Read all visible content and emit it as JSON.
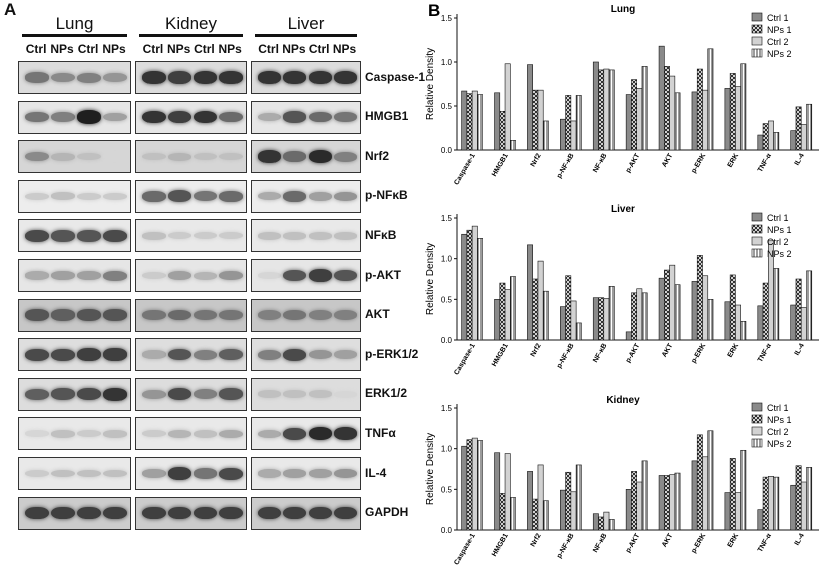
{
  "panel_a": {
    "letter": "A",
    "tissues": [
      {
        "name": "Lung",
        "lanes": [
          "Ctrl",
          "NPs",
          "Ctrl",
          "NPs"
        ]
      },
      {
        "name": "Kidney",
        "lanes": [
          "Ctrl",
          "NPs",
          "Ctrl",
          "NPs"
        ]
      },
      {
        "name": "Liver",
        "lanes": [
          "Ctrl",
          "NPs",
          "Ctrl",
          "NPs"
        ]
      }
    ],
    "rows": [
      {
        "label": "Caspase-1",
        "bg": "#dcdcdc",
        "intensity": [
          [
            0.55,
            0.45,
            0.5,
            0.4
          ],
          [
            0.85,
            0.8,
            0.85,
            0.85
          ],
          [
            0.85,
            0.85,
            0.85,
            0.85
          ]
        ]
      },
      {
        "label": "HMGB1",
        "bg": "#e6e6e6",
        "intensity": [
          [
            0.55,
            0.5,
            0.95,
            0.35
          ],
          [
            0.85,
            0.8,
            0.85,
            0.6
          ],
          [
            0.3,
            0.7,
            0.6,
            0.55
          ]
        ]
      },
      {
        "label": "Nrf2",
        "bg": "#d6d6d6",
        "intensity": [
          [
            0.45,
            0.25,
            0.2,
            0.1
          ],
          [
            0.2,
            0.25,
            0.2,
            0.2
          ],
          [
            0.85,
            0.6,
            0.9,
            0.5
          ]
        ]
      },
      {
        "label": "p-NFκB",
        "bg": "#ededed",
        "intensity": [
          [
            0.15,
            0.2,
            0.15,
            0.15
          ],
          [
            0.6,
            0.7,
            0.55,
            0.6
          ],
          [
            0.3,
            0.6,
            0.35,
            0.4
          ]
        ]
      },
      {
        "label": "NFκB",
        "bg": "#e9e9e9",
        "intensity": [
          [
            0.75,
            0.7,
            0.7,
            0.75
          ],
          [
            0.2,
            0.15,
            0.15,
            0.15
          ],
          [
            0.2,
            0.2,
            0.2,
            0.2
          ]
        ]
      },
      {
        "label": "p-AKT",
        "bg": "#e6e6e6",
        "intensity": [
          [
            0.3,
            0.35,
            0.35,
            0.5
          ],
          [
            0.15,
            0.35,
            0.25,
            0.4
          ],
          [
            0.1,
            0.7,
            0.8,
            0.7
          ]
        ]
      },
      {
        "label": "AKT",
        "bg": "#c7c7c7",
        "intensity": [
          [
            0.7,
            0.65,
            0.7,
            0.7
          ],
          [
            0.55,
            0.6,
            0.55,
            0.55
          ],
          [
            0.5,
            0.55,
            0.5,
            0.5
          ]
        ]
      },
      {
        "label": "p-ERK1/2",
        "bg": "#dedede",
        "intensity": [
          [
            0.75,
            0.75,
            0.8,
            0.8
          ],
          [
            0.3,
            0.7,
            0.5,
            0.65
          ],
          [
            0.5,
            0.75,
            0.4,
            0.35
          ]
        ]
      },
      {
        "label": "ERK1/2",
        "bg": "#dddddd",
        "intensity": [
          [
            0.65,
            0.7,
            0.75,
            0.85
          ],
          [
            0.4,
            0.75,
            0.5,
            0.7
          ],
          [
            0.2,
            0.2,
            0.2,
            0.1
          ]
        ]
      },
      {
        "label": "TNFα",
        "bg": "#e9e9e9",
        "intensity": [
          [
            0.1,
            0.2,
            0.15,
            0.2
          ],
          [
            0.15,
            0.25,
            0.2,
            0.3
          ],
          [
            0.3,
            0.75,
            0.9,
            0.85
          ]
        ]
      },
      {
        "label": "IL-4",
        "bg": "#e9e9e9",
        "intensity": [
          [
            0.15,
            0.2,
            0.2,
            0.2
          ],
          [
            0.35,
            0.8,
            0.55,
            0.75
          ],
          [
            0.3,
            0.35,
            0.35,
            0.4
          ]
        ]
      },
      {
        "label": "GAPDH",
        "bg": "#cccccc",
        "intensity": [
          [
            0.8,
            0.8,
            0.8,
            0.8
          ],
          [
            0.8,
            0.8,
            0.8,
            0.8
          ],
          [
            0.8,
            0.8,
            0.8,
            0.8
          ]
        ]
      }
    ]
  },
  "panel_b": {
    "letter": "B",
    "legend": [
      "Ctrl 1",
      "NPs 1",
      "Ctrl 2",
      "NPs 2"
    ]
  },
  "chart_data": [
    {
      "type": "bar",
      "title": "Lung",
      "ylabel": "Relative Density",
      "ylim": [
        0,
        1.5
      ],
      "yticks": [
        "0.0",
        "0.5",
        "1.0",
        "1.5"
      ],
      "categories": [
        "Caspase-1",
        "HMGB1",
        "Nrf2",
        "p-NF-κB",
        "NF-κB",
        "p-AKT",
        "AKT",
        "p-ERK",
        "ERK",
        "TNF-α",
        "IL-4"
      ],
      "series": [
        {
          "name": "Ctrl 1",
          "values": [
            0.67,
            0.65,
            0.97,
            0.35,
            1.0,
            0.63,
            1.18,
            0.66,
            0.7,
            0.17,
            0.22
          ]
        },
        {
          "name": "NPs 1",
          "values": [
            0.64,
            0.44,
            0.68,
            0.62,
            0.91,
            0.8,
            0.95,
            0.92,
            0.87,
            0.3,
            0.49
          ]
        },
        {
          "name": "Ctrl 2",
          "values": [
            0.67,
            0.98,
            0.68,
            0.33,
            0.92,
            0.7,
            0.84,
            0.68,
            0.72,
            0.33,
            0.29
          ]
        },
        {
          "name": "NPs 2",
          "values": [
            0.63,
            0.11,
            0.33,
            0.62,
            0.91,
            0.95,
            0.65,
            1.15,
            0.98,
            0.2,
            0.52
          ]
        }
      ],
      "legend_position": "top-right"
    },
    {
      "type": "bar",
      "title": "Liver",
      "ylabel": "Relative Density",
      "ylim": [
        0,
        1.5
      ],
      "yticks": [
        "0.0",
        "0.5",
        "1.0",
        "1.5"
      ],
      "categories": [
        "Caspase-1",
        "HMGB1",
        "Nrf2",
        "p-NF-κB",
        "NF-κB",
        "p-AKT",
        "AKT",
        "p-ERK",
        "ERK",
        "TNF-α",
        "IL-4"
      ],
      "series": [
        {
          "name": "Ctrl 1",
          "values": [
            1.3,
            0.5,
            1.17,
            0.41,
            0.52,
            0.1,
            0.76,
            0.72,
            0.47,
            0.42,
            0.43
          ]
        },
        {
          "name": "NPs 1",
          "values": [
            1.35,
            0.7,
            0.75,
            0.79,
            0.52,
            0.58,
            0.86,
            1.04,
            0.8,
            0.7,
            0.75
          ]
        },
        {
          "name": "Ctrl 2",
          "values": [
            1.4,
            0.62,
            0.97,
            0.48,
            0.51,
            0.63,
            0.92,
            0.79,
            0.43,
            1.22,
            0.4
          ]
        },
        {
          "name": "NPs 2",
          "values": [
            1.25,
            0.78,
            0.6,
            0.21,
            0.66,
            0.58,
            0.68,
            0.5,
            0.23,
            0.88,
            0.85
          ]
        }
      ],
      "legend_position": "top-right"
    },
    {
      "type": "bar",
      "title": "Kidney",
      "ylabel": "Relative Density",
      "ylim": [
        0,
        1.5
      ],
      "yticks": [
        "0.0",
        "0.5",
        "1.0",
        "1.5"
      ],
      "categories": [
        "Caspase-1",
        "HMGB1",
        "Nrf2",
        "p-NF-κB",
        "NF-κB",
        "p-AKT",
        "AKT",
        "p-ERK",
        "ERK",
        "TNF-α",
        "IL-4"
      ],
      "series": [
        {
          "name": "Ctrl 1",
          "values": [
            1.03,
            0.95,
            0.72,
            0.49,
            0.2,
            0.5,
            0.67,
            0.85,
            0.46,
            0.25,
            0.55
          ]
        },
        {
          "name": "NPs 1",
          "values": [
            1.11,
            0.45,
            0.38,
            0.71,
            0.16,
            0.72,
            0.67,
            1.17,
            0.88,
            0.65,
            0.79
          ]
        },
        {
          "name": "Ctrl 2",
          "values": [
            1.13,
            0.94,
            0.8,
            0.47,
            0.22,
            0.59,
            0.68,
            0.9,
            0.46,
            0.66,
            0.59
          ]
        },
        {
          "name": "NPs 2",
          "values": [
            1.1,
            0.4,
            0.36,
            0.8,
            0.13,
            0.85,
            0.7,
            1.22,
            0.98,
            0.65,
            0.77
          ]
        }
      ],
      "legend_position": "top-right"
    }
  ]
}
